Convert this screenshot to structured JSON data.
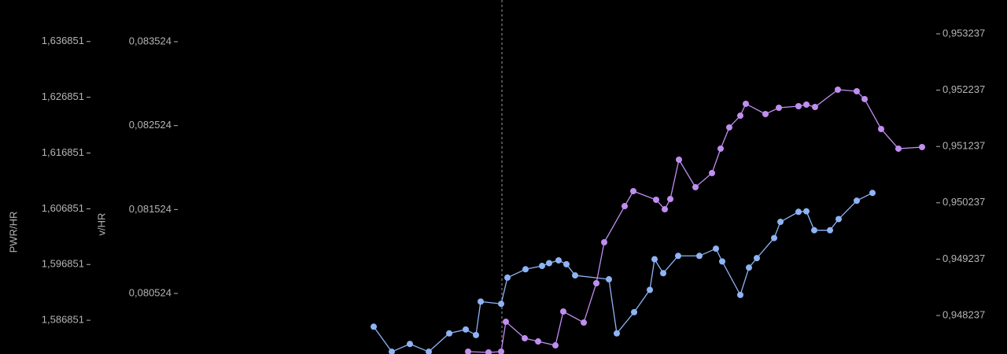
{
  "chart_data": {
    "type": "line",
    "ylabel": "PWR/HR",
    "ylim": [
      1.5808,
      1.6443
    ],
    "yticks": [
      {
        "value": 1.636851,
        "label": "1,636851"
      },
      {
        "value": 1.626851,
        "label": "1,626851"
      },
      {
        "value": 1.616851,
        "label": "1,616851"
      },
      {
        "value": 1.606851,
        "label": "1,606851"
      },
      {
        "value": 1.596851,
        "label": "1,596851"
      },
      {
        "value": 1.586851,
        "label": "1,586851"
      }
    ],
    "y3label": "v/HR",
    "y3lim": [
      0.079802,
      0.084021
    ],
    "y3ticks": [
      {
        "value": 0.083524,
        "label": "0,083524"
      },
      {
        "value": 0.082524,
        "label": "0,082524"
      },
      {
        "value": 0.081524,
        "label": "0,081524"
      },
      {
        "value": 0.080524,
        "label": "0,080524"
      }
    ],
    "y2lim": [
      0.947553,
      0.953837
    ],
    "y2ticks": [
      {
        "value": 0.953237,
        "label": "0,953237"
      },
      {
        "value": 0.952237,
        "label": "0,952237"
      },
      {
        "value": 0.951237,
        "label": "0,951237"
      },
      {
        "value": 0.950237,
        "label": "0,950237"
      },
      {
        "value": 0.949237,
        "label": "0,949237"
      },
      {
        "value": 0.948237,
        "label": "0,948237"
      }
    ],
    "xlim": [
      0,
      128
    ],
    "series": [
      {
        "color": "#8fb4f5",
        "x": [
          47.5,
          49.8,
          52.1,
          54.5,
          57.1,
          59.2,
          60.5,
          61.1,
          63.7,
          64.5,
          66.8,
          68.9,
          69.8,
          71.0,
          72.0,
          73.1,
          77.4,
          78.4,
          80.6,
          82.6,
          83.2,
          84.3,
          86.2,
          88.9,
          91.0,
          91.8,
          94.1,
          95.2,
          96.2,
          98.4,
          99.2,
          101.5,
          102.5,
          103.5,
          105.5,
          106.6,
          108.9,
          110.9
        ],
        "values": [
          1.5857,
          1.5812,
          1.5826,
          1.5812,
          1.5845,
          1.5852,
          1.5842,
          1.5902,
          1.5898,
          1.5945,
          1.596,
          1.5966,
          1.5971,
          1.5976,
          1.5969,
          1.5949,
          1.5942,
          1.5845,
          1.5883,
          1.5923,
          1.5978,
          1.5953,
          1.5984,
          1.5984,
          1.5997,
          1.5974,
          1.5914,
          1.5963,
          1.598,
          1.6016,
          1.6045,
          1.6063,
          1.6064,
          1.603,
          1.603,
          1.605,
          1.6083,
          1.6097
        ]
      },
      {
        "color": "#c08ef0",
        "axis": "y2",
        "x": [
          59.5,
          62.1,
          63.7,
          64.3,
          66.7,
          68.4,
          70.6,
          71.6,
          74.2,
          75.8,
          76.8,
          79.4,
          80.5,
          83.4,
          84.5,
          85.2,
          86.3,
          88.4,
          90.5,
          91.6,
          92.7,
          94.1,
          94.8,
          97.3,
          99.0,
          101.5,
          102.5,
          103.6,
          106.5,
          108.9,
          109.9,
          112.0,
          114.2,
          117.2
        ],
        "values": [
          0.947595,
          0.947581,
          0.947595,
          0.948125,
          0.947832,
          0.947776,
          0.947706,
          0.948307,
          0.948111,
          0.94881,
          0.949536,
          0.950178,
          0.950444,
          0.95029,
          0.950122,
          0.950304,
          0.951002,
          0.950514,
          0.950765,
          0.951198,
          0.951575,
          0.951784,
          0.951994,
          0.951812,
          0.951924,
          0.951952,
          0.95198,
          0.951938,
          0.952245,
          0.952217,
          0.952078,
          0.951547,
          0.951198,
          0.951226
        ]
      }
    ]
  }
}
